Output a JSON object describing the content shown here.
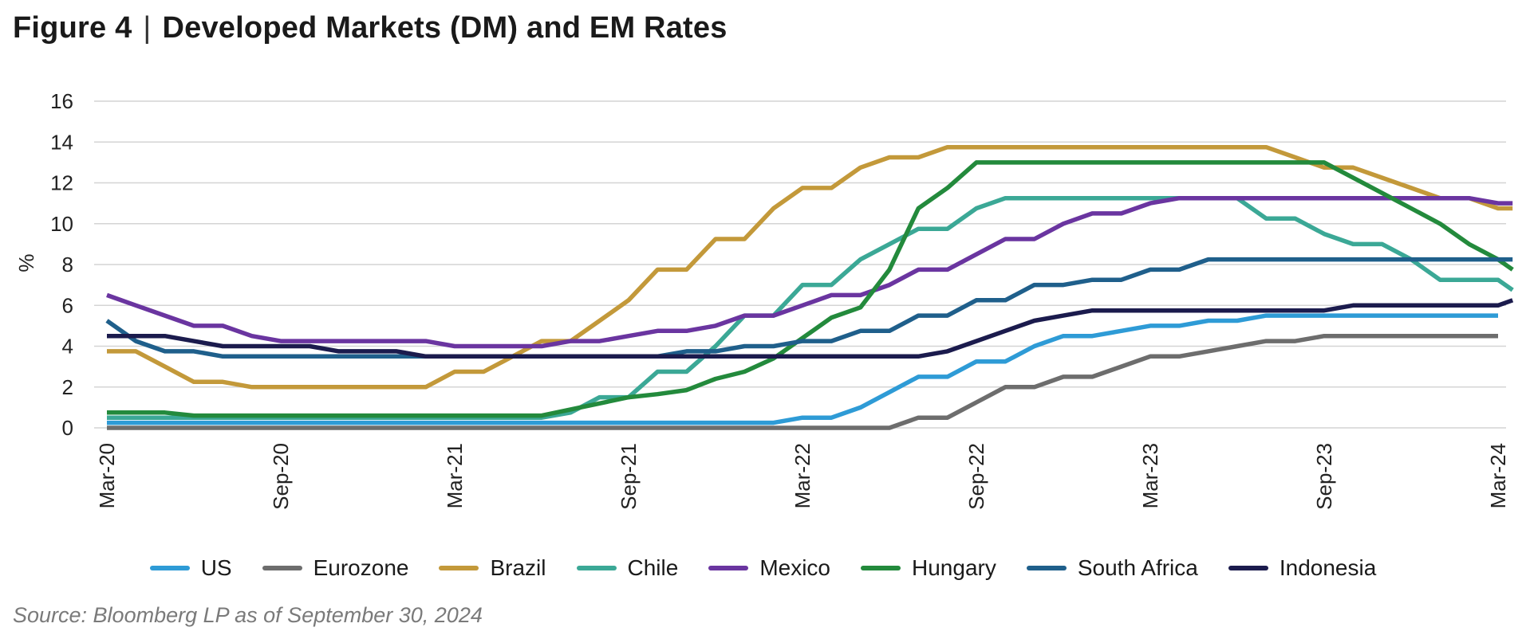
{
  "figure": {
    "label": "Figure 4",
    "separator": "|",
    "title": "Developed Markets (DM) and EM Rates"
  },
  "source": "Source: Bloomberg LP as of September 30, 2024",
  "chart_data": {
    "type": "line",
    "title": "Developed Markets (DM) and EM Rates",
    "xlabel": "",
    "ylabel": "%",
    "ylim": [
      0,
      16
    ],
    "yticks": [
      0,
      2,
      4,
      6,
      8,
      10,
      12,
      14,
      16
    ],
    "x_start_month_index": 0,
    "x_end_month_index": 48,
    "x_tick_labels": [
      "Mar-20",
      "Sep-20",
      "Mar-21",
      "Sep-21",
      "Mar-22",
      "Sep-22",
      "Mar-23",
      "Sep-23",
      "Mar-24"
    ],
    "x_tick_month_index": [
      0,
      6,
      12,
      18,
      24,
      30,
      36,
      42,
      48
    ],
    "grid": true,
    "legend_position": "bottom",
    "series": [
      {
        "name": "US",
        "color": "#2e9bd6",
        "points": [
          [
            0,
            0.25
          ],
          [
            23,
            0.25
          ],
          [
            24,
            0.5
          ],
          [
            25,
            0.5
          ],
          [
            26,
            1.0
          ],
          [
            27,
            1.75
          ],
          [
            28,
            2.5
          ],
          [
            29,
            2.5
          ],
          [
            30,
            3.25
          ],
          [
            31,
            3.25
          ],
          [
            32,
            4.0
          ],
          [
            33,
            4.5
          ],
          [
            34,
            4.5
          ],
          [
            35,
            4.75
          ],
          [
            36,
            5.0
          ],
          [
            37,
            5.0
          ],
          [
            38,
            5.25
          ],
          [
            39,
            5.25
          ],
          [
            40,
            5.5
          ],
          [
            48,
            5.5
          ]
        ]
      },
      {
        "name": "Eurozone",
        "color": "#6d6d6d",
        "points": [
          [
            0,
            0
          ],
          [
            27,
            0
          ],
          [
            28,
            0.5
          ],
          [
            29,
            0.5
          ],
          [
            30,
            1.25
          ],
          [
            31,
            2.0
          ],
          [
            32,
            2.0
          ],
          [
            33,
            2.5
          ],
          [
            34,
            2.5
          ],
          [
            35,
            3.0
          ],
          [
            36,
            3.5
          ],
          [
            37,
            3.5
          ],
          [
            38,
            3.75
          ],
          [
            39,
            4.0
          ],
          [
            40,
            4.25
          ],
          [
            41,
            4.25
          ],
          [
            42,
            4.5
          ],
          [
            48,
            4.5
          ]
        ]
      },
      {
        "name": "Brazil",
        "color": "#c3993a",
        "points": [
          [
            0,
            3.75
          ],
          [
            1,
            3.75
          ],
          [
            2,
            3.0
          ],
          [
            3,
            2.25
          ],
          [
            4,
            2.25
          ],
          [
            5,
            2.0
          ],
          [
            11,
            2.0
          ],
          [
            12,
            2.75
          ],
          [
            13,
            2.75
          ],
          [
            14,
            3.5
          ],
          [
            15,
            4.25
          ],
          [
            16,
            4.25
          ],
          [
            17,
            5.25
          ],
          [
            18,
            6.25
          ],
          [
            19,
            7.75
          ],
          [
            20,
            7.75
          ],
          [
            21,
            9.25
          ],
          [
            22,
            9.25
          ],
          [
            23,
            10.75
          ],
          [
            24,
            11.75
          ],
          [
            25,
            11.75
          ],
          [
            26,
            12.75
          ],
          [
            27,
            13.25
          ],
          [
            28,
            13.25
          ],
          [
            29,
            13.75
          ],
          [
            40,
            13.75
          ],
          [
            41,
            13.25
          ],
          [
            42,
            12.75
          ],
          [
            43,
            12.75
          ],
          [
            44,
            12.25
          ],
          [
            45,
            11.75
          ],
          [
            46,
            11.25
          ],
          [
            47,
            11.25
          ],
          [
            48,
            10.75
          ],
          [
            48.5,
            10.75
          ]
        ]
      },
      {
        "name": "Chile",
        "color": "#3ba896",
        "points": [
          [
            0,
            0.5
          ],
          [
            15,
            0.5
          ],
          [
            16,
            0.75
          ],
          [
            17,
            1.5
          ],
          [
            18,
            1.5
          ],
          [
            19,
            2.75
          ],
          [
            20,
            2.75
          ],
          [
            21,
            4.0
          ],
          [
            22,
            5.5
          ],
          [
            23,
            5.5
          ],
          [
            24,
            7.0
          ],
          [
            25,
            7.0
          ],
          [
            26,
            8.25
          ],
          [
            27,
            9.0
          ],
          [
            28,
            9.75
          ],
          [
            29,
            9.75
          ],
          [
            30,
            10.75
          ],
          [
            31,
            11.25
          ],
          [
            39,
            11.25
          ],
          [
            40,
            10.25
          ],
          [
            41,
            10.25
          ],
          [
            42,
            9.5
          ],
          [
            43,
            9.0
          ],
          [
            44,
            9.0
          ],
          [
            45,
            8.25
          ],
          [
            46,
            7.25
          ],
          [
            47,
            7.25
          ],
          [
            48,
            7.25
          ],
          [
            48.5,
            6.75
          ]
        ]
      },
      {
        "name": "Mexico",
        "color": "#6a35a0",
        "points": [
          [
            0,
            6.5
          ],
          [
            1,
            6.0
          ],
          [
            2,
            5.5
          ],
          [
            3,
            5.0
          ],
          [
            4,
            5.0
          ],
          [
            5,
            4.5
          ],
          [
            6,
            4.25
          ],
          [
            11,
            4.25
          ],
          [
            12,
            4.0
          ],
          [
            15,
            4.0
          ],
          [
            16,
            4.25
          ],
          [
            17,
            4.25
          ],
          [
            18,
            4.5
          ],
          [
            19,
            4.75
          ],
          [
            20,
            4.75
          ],
          [
            21,
            5.0
          ],
          [
            22,
            5.5
          ],
          [
            23,
            5.5
          ],
          [
            24,
            6.0
          ],
          [
            25,
            6.5
          ],
          [
            26,
            6.5
          ],
          [
            27,
            7.0
          ],
          [
            28,
            7.75
          ],
          [
            29,
            7.75
          ],
          [
            30,
            8.5
          ],
          [
            31,
            9.25
          ],
          [
            32,
            9.25
          ],
          [
            33,
            10.0
          ],
          [
            34,
            10.5
          ],
          [
            35,
            10.5
          ],
          [
            36,
            11.0
          ],
          [
            37,
            11.25
          ],
          [
            46,
            11.25
          ],
          [
            47,
            11.25
          ],
          [
            48,
            11.0
          ],
          [
            48.5,
            11.0
          ]
        ]
      },
      {
        "name": "Hungary",
        "color": "#238a3c",
        "points": [
          [
            0,
            0.75
          ],
          [
            2,
            0.75
          ],
          [
            3,
            0.6
          ],
          [
            4,
            0.6
          ],
          [
            14,
            0.6
          ],
          [
            15,
            0.6
          ],
          [
            16,
            0.9
          ],
          [
            17,
            1.2
          ],
          [
            18,
            1.5
          ],
          [
            19,
            1.65
          ],
          [
            20,
            1.85
          ],
          [
            21,
            2.4
          ],
          [
            22,
            2.75
          ],
          [
            23,
            3.4
          ],
          [
            24,
            4.4
          ],
          [
            25,
            5.4
          ],
          [
            26,
            5.9
          ],
          [
            27,
            7.75
          ],
          [
            28,
            10.75
          ],
          [
            29,
            11.75
          ],
          [
            30,
            13.0
          ],
          [
            42,
            13.0
          ],
          [
            43,
            12.25
          ],
          [
            44,
            11.5
          ],
          [
            45,
            10.75
          ],
          [
            46,
            10.0
          ],
          [
            47,
            9.0
          ],
          [
            48,
            8.25
          ],
          [
            48.5,
            7.75
          ]
        ]
      },
      {
        "name": "South Africa",
        "color": "#1f5f8b",
        "points": [
          [
            0,
            5.25
          ],
          [
            1,
            4.25
          ],
          [
            2,
            3.75
          ],
          [
            3,
            3.75
          ],
          [
            4,
            3.5
          ],
          [
            12,
            3.5
          ],
          [
            13,
            3.5
          ],
          [
            18,
            3.5
          ],
          [
            19,
            3.5
          ],
          [
            20,
            3.75
          ],
          [
            21,
            3.75
          ],
          [
            22,
            4.0
          ],
          [
            23,
            4.0
          ],
          [
            24,
            4.25
          ],
          [
            25,
            4.25
          ],
          [
            26,
            4.75
          ],
          [
            27,
            4.75
          ],
          [
            28,
            5.5
          ],
          [
            29,
            5.5
          ],
          [
            30,
            6.25
          ],
          [
            31,
            6.25
          ],
          [
            32,
            7.0
          ],
          [
            33,
            7.0
          ],
          [
            34,
            7.25
          ],
          [
            35,
            7.25
          ],
          [
            36,
            7.75
          ],
          [
            37,
            7.75
          ],
          [
            38,
            8.25
          ],
          [
            48.5,
            8.25
          ]
        ]
      },
      {
        "name": "Indonesia",
        "color": "#1b1b4d",
        "points": [
          [
            0,
            4.5
          ],
          [
            2,
            4.5
          ],
          [
            3,
            4.25
          ],
          [
            4,
            4.0
          ],
          [
            7,
            4.0
          ],
          [
            8,
            3.75
          ],
          [
            10,
            3.75
          ],
          [
            11,
            3.5
          ],
          [
            28,
            3.5
          ],
          [
            29,
            3.75
          ],
          [
            30,
            4.25
          ],
          [
            31,
            4.75
          ],
          [
            32,
            5.25
          ],
          [
            33,
            5.5
          ],
          [
            34,
            5.75
          ],
          [
            42,
            5.75
          ],
          [
            43,
            6.0
          ],
          [
            48,
            6.0
          ],
          [
            48.5,
            6.25
          ]
        ]
      }
    ]
  }
}
